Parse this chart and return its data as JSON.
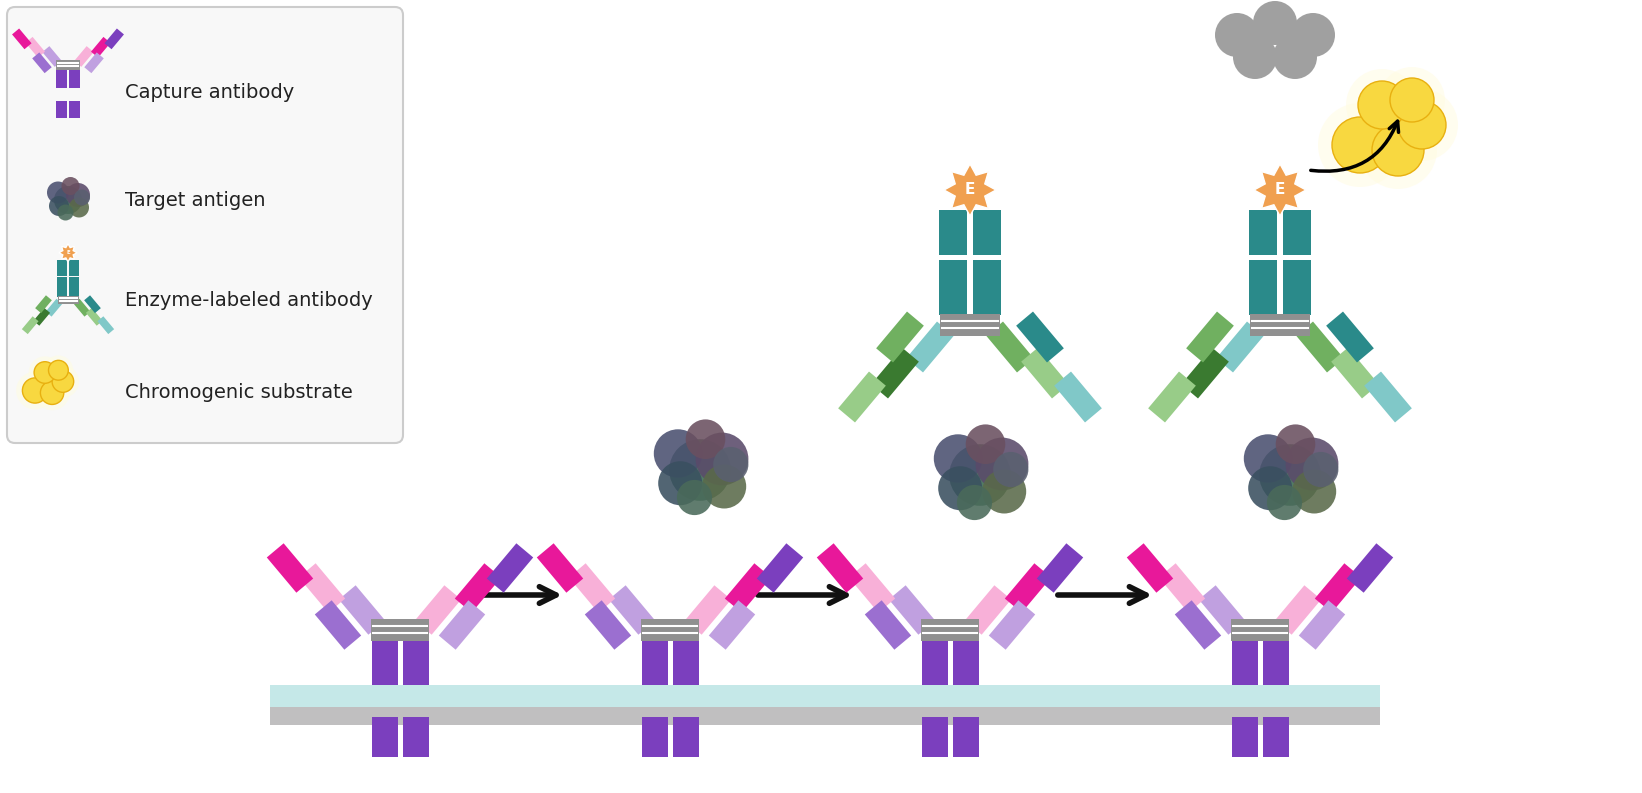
{
  "background": "#ffffff",
  "legend_border_color": "#cccccc",
  "legend_items": [
    "Capture antibody",
    "Target antigen",
    "Enzyme-labeled antibody",
    "Chromogenic substrate"
  ],
  "surface_color": "#c5e8e8",
  "platform_color": "#c0bfc0",
  "ab_purple_dark": "#7b3fbe",
  "ab_purple_mid": "#9b6fd0",
  "ab_purple_light": "#c0a0e0",
  "ab_pink_dark": "#e8189a",
  "ab_pink_mid": "#f060b0",
  "ab_pink_light": "#f8b0d8",
  "ab_hinge_color": "#909090",
  "enzyme_teal_dark": "#2a8a8a",
  "enzyme_teal_light": "#80c8c8",
  "enzyme_green_dark": "#3a7a30",
  "enzyme_green_light": "#98cc88",
  "enzyme_green_mid": "#70b060",
  "enzyme_label_color": "#f0a050",
  "gray_circle_color": "#a0a0a0",
  "chromogenic_yellow": "#f0c020",
  "chromogenic_gold": "#f8d840",
  "arrow_color": "#111111",
  "text_color": "#222222",
  "figsize": [
    16.42,
    7.93
  ],
  "dpi": 100
}
